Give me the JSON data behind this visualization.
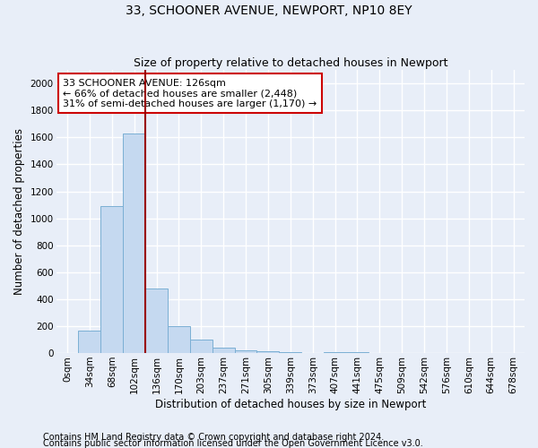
{
  "title": "33, SCHOONER AVENUE, NEWPORT, NP10 8EY",
  "subtitle": "Size of property relative to detached houses in Newport",
  "xlabel": "Distribution of detached houses by size in Newport",
  "ylabel": "Number of detached properties",
  "bins": [
    "0sqm",
    "34sqm",
    "68sqm",
    "102sqm",
    "136sqm",
    "170sqm",
    "203sqm",
    "237sqm",
    "271sqm",
    "305sqm",
    "339sqm",
    "373sqm",
    "407sqm",
    "441sqm",
    "475sqm",
    "509sqm",
    "542sqm",
    "576sqm",
    "610sqm",
    "644sqm",
    "678sqm"
  ],
  "values": [
    0,
    165,
    1090,
    1630,
    480,
    200,
    100,
    40,
    20,
    15,
    5,
    0,
    10,
    5,
    0,
    0,
    0,
    0,
    0,
    0,
    0
  ],
  "bar_color": "#c5d9f0",
  "bar_edge_color": "#7bafd4",
  "vline_x": 3.5,
  "vline_color": "#990000",
  "annotation_text": "33 SCHOONER AVENUE: 126sqm\n← 66% of detached houses are smaller (2,448)\n31% of semi-detached houses are larger (1,170) →",
  "annotation_box_edgecolor": "#cc0000",
  "ylim": [
    0,
    2100
  ],
  "yticks": [
    0,
    200,
    400,
    600,
    800,
    1000,
    1200,
    1400,
    1600,
    1800,
    2000
  ],
  "footnote1": "Contains HM Land Registry data © Crown copyright and database right 2024.",
  "footnote2": "Contains public sector information licensed under the Open Government Licence v3.0.",
  "bg_color": "#e8eef8",
  "plot_bg_color": "#e8eef8",
  "grid_color": "#ffffff",
  "title_fontsize": 10,
  "subtitle_fontsize": 9,
  "axis_label_fontsize": 8.5,
  "tick_fontsize": 7.5,
  "annotation_fontsize": 8,
  "footnote_fontsize": 7
}
